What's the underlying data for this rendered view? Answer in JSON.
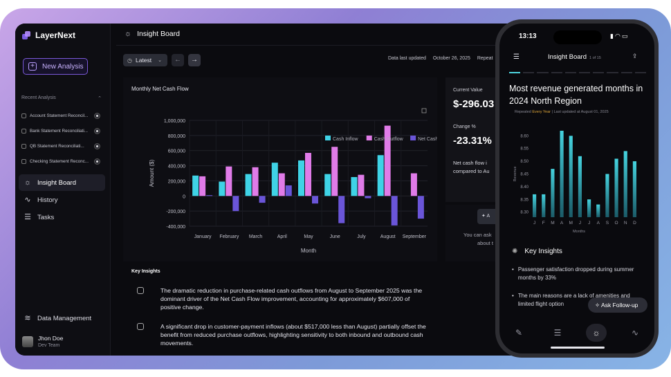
{
  "app": {
    "name": "LayerNext"
  },
  "sidebar": {
    "new_analysis_label": "New Analysis",
    "recent_label": "Recent Analysis",
    "recent_items": [
      {
        "label": "Account Statement Reconcil..."
      },
      {
        "label": "Bank Statement Reconciliati..."
      },
      {
        "label": "QB Statement Reconciliati..."
      },
      {
        "label": "Checking Statement Reconc..."
      }
    ],
    "nav": [
      {
        "label": "Insight Board",
        "icon": "lightbulb-icon",
        "active": true
      },
      {
        "label": "History",
        "icon": "history-icon",
        "active": false
      },
      {
        "label": "Tasks",
        "icon": "tasks-icon",
        "active": false
      }
    ],
    "data_management_label": "Data Management",
    "user": {
      "name": "Jhon Doe",
      "team": "Dev Team"
    }
  },
  "topbar": {
    "title": "Insight Board"
  },
  "toolbar": {
    "latest_label": "Latest",
    "last_updated_label": "Data last updated",
    "last_updated_value": "October 26, 2025",
    "repeat_label": "Repeat"
  },
  "chart_card": {
    "title": "Monthly Net Cash Flow"
  },
  "chart_data": {
    "type": "bar",
    "categories": [
      "January",
      "February",
      "March",
      "April",
      "May",
      "June",
      "July",
      "August",
      "September"
    ],
    "series": [
      {
        "name": "Cash Inflow",
        "color": "#3fd3e6",
        "values": [
          270000,
          190000,
          290000,
          440000,
          470000,
          290000,
          250000,
          540000,
          0
        ]
      },
      {
        "name": "Cash Outflow",
        "color": "#e07be8",
        "values": [
          260000,
          390000,
          380000,
          300000,
          570000,
          650000,
          280000,
          930000,
          300000
        ]
      },
      {
        "name": "Net Cash Flow",
        "color": "#6a55d8",
        "values": [
          10000,
          -200000,
          -90000,
          140000,
          -100000,
          -360000,
          -30000,
          -390000,
          -300000
        ]
      }
    ],
    "yticks": [
      "1,000,000",
      "800,000",
      "600,000",
      "400,000",
      "200,000",
      "0",
      "-200,000",
      "-400,000"
    ],
    "ylim": [
      -400000,
      1000000
    ],
    "xlabel": "Month",
    "ylabel": "Amount ($)",
    "legend": "top-right",
    "grid": true
  },
  "kpi": {
    "current_value_label": "Current Value",
    "current_value": "$-296.03",
    "change_label": "Change %",
    "change_value": "-23.31%",
    "note_line1": "Net cash flow i",
    "note_line2": "compared to Au",
    "ask_button": "A",
    "ask_line1": "You can ask",
    "ask_line2": "about t"
  },
  "insights": {
    "heading": "Key Insights",
    "items": [
      "The dramatic reduction in purchase-related cash outflows from August to September 2025 was the dominant driver of the Net Cash Flow improvement, accounting for approximately $607,000 of positive change.",
      "A significant drop in customer-payment inflows (about $517,000 less than August) partially offset the benefit from reduced purchase outflows, highlighting sensitivity to both inbound and outbound cash movements."
    ]
  },
  "phone": {
    "time": "13:13",
    "header_title": "Insight Board",
    "header_sub": "1 of 15",
    "heading": "Most revenue generated months in 2024 North Region",
    "meta_prefix": "Repeated",
    "meta_repeat": "Every Year",
    "meta_suffix": "| Last updated at August 01, 2025",
    "chart": {
      "type": "bar",
      "categories": [
        "J",
        "F",
        "M",
        "A",
        "M",
        "J",
        "J",
        "A",
        "S",
        "O",
        "N",
        "D"
      ],
      "values": [
        8.37,
        8.37,
        8.47,
        8.62,
        8.6,
        8.52,
        8.35,
        8.33,
        8.45,
        8.51,
        8.54,
        8.5
      ],
      "yticks": [
        "8.60",
        "8.55",
        "8.50",
        "8.45",
        "8.40",
        "8.35",
        "8.30"
      ],
      "ylim": [
        8.28,
        8.62
      ],
      "xlabel": "Months",
      "ylabel": "Revenue"
    },
    "key_insights_label": "Key Insights",
    "bullets": [
      "Passenger satisfaction dropped during summer months by 33%",
      "The main reasons are a lack of amenities and limited flight option"
    ],
    "follow_up_label": "Ask Follow-up"
  }
}
